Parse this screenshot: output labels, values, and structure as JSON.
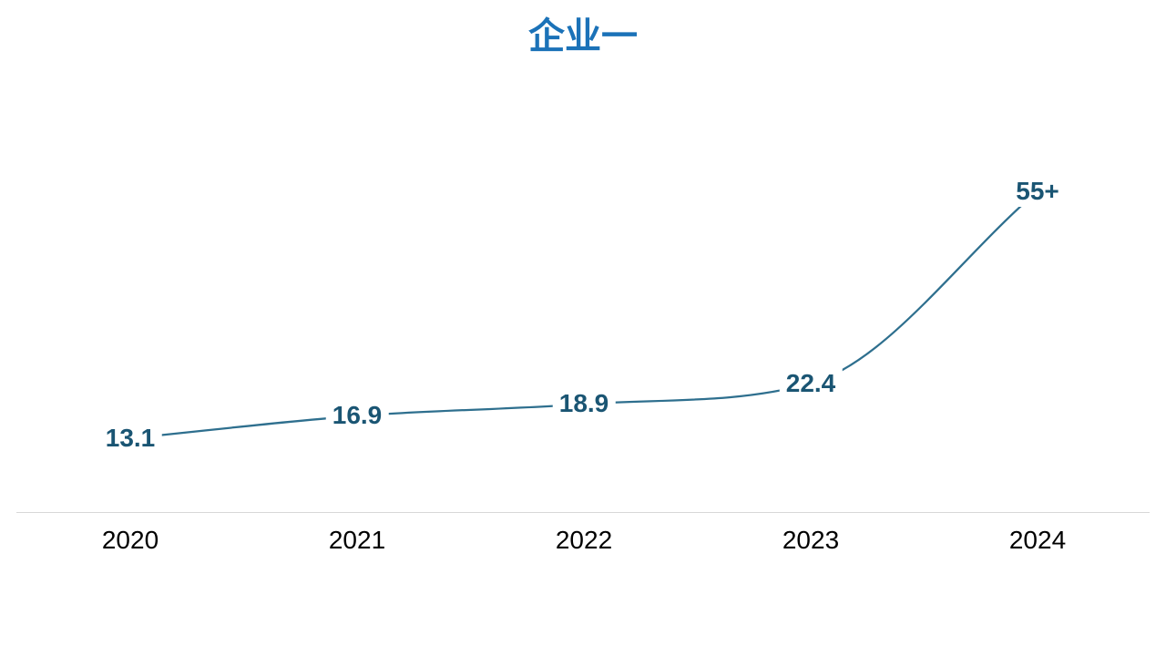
{
  "title": "企业一",
  "colors": {
    "title": "#1B72B8",
    "line": "#2E6F8E",
    "data_label": "#1A5573",
    "axis_line": "#D8D8D8",
    "x_label": "#000000",
    "background": "#FFFFFF"
  },
  "chart_data": {
    "type": "line",
    "title": "企业一",
    "categories": [
      "2020",
      "2021",
      "2022",
      "2023",
      "2024"
    ],
    "series": [
      {
        "name": "企业一",
        "values": [
          13.1,
          16.9,
          18.9,
          22.4,
          55
        ],
        "point_labels": [
          "13.1",
          "16.9",
          "18.9",
          "22.4",
          "55+"
        ]
      }
    ],
    "xlabel": "",
    "ylabel": "",
    "y_axis_visible": false,
    "grid": false,
    "legend": false,
    "line_smoothed": true,
    "labels_on_line": true,
    "baseline_visible": true
  }
}
